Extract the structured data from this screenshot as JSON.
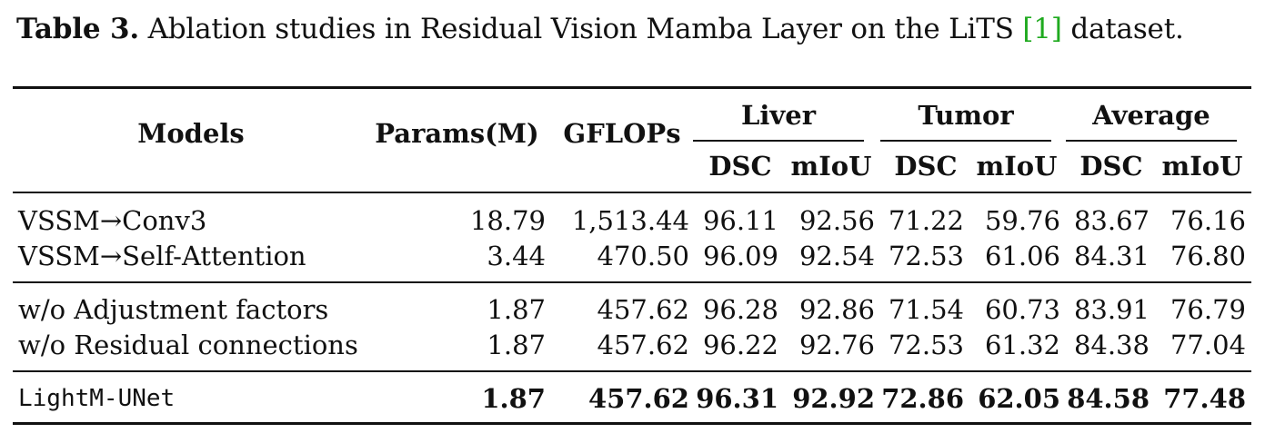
{
  "caption": {
    "label": "Table 3.",
    "text_before": " Ablation studies in Residual Vision Mamba Layer on the LiTS ",
    "cite": "[1]",
    "text_after": " dataset."
  },
  "header": {
    "models": "Models",
    "params": "Params(M)",
    "gflops": "GFLOPs",
    "groups": [
      "Liver",
      "Tumor",
      "Average"
    ],
    "sub": [
      "DSC",
      "mIoU",
      "DSC",
      "mIoU",
      "DSC",
      "mIoU"
    ]
  },
  "rows": [
    {
      "model": "VSSM→Conv3",
      "params": "18.79",
      "gflops": "1,513.44",
      "vals": [
        "96.11",
        "92.56",
        "71.22",
        "59.76",
        "83.67",
        "76.16"
      ]
    },
    {
      "model": "VSSM→Self-Attention",
      "params": "3.44",
      "gflops": "470.50",
      "vals": [
        "96.09",
        "92.54",
        "72.53",
        "61.06",
        "84.31",
        "76.80"
      ]
    },
    {
      "model": "w/o Adjustment factors",
      "params": "1.87",
      "gflops": "457.62",
      "vals": [
        "96.28",
        "92.86",
        "71.54",
        "60.73",
        "83.91",
        "76.79"
      ]
    },
    {
      "model": "w/o Residual connections",
      "params": "1.87",
      "gflops": "457.62",
      "vals": [
        "96.22",
        "92.76",
        "72.53",
        "61.32",
        "84.38",
        "77.04"
      ]
    },
    {
      "model": "LightM-UNet",
      "params": "1.87",
      "gflops": "457.62",
      "vals": [
        "96.31",
        "92.92",
        "72.86",
        "62.05",
        "84.58",
        "77.48"
      ]
    }
  ]
}
